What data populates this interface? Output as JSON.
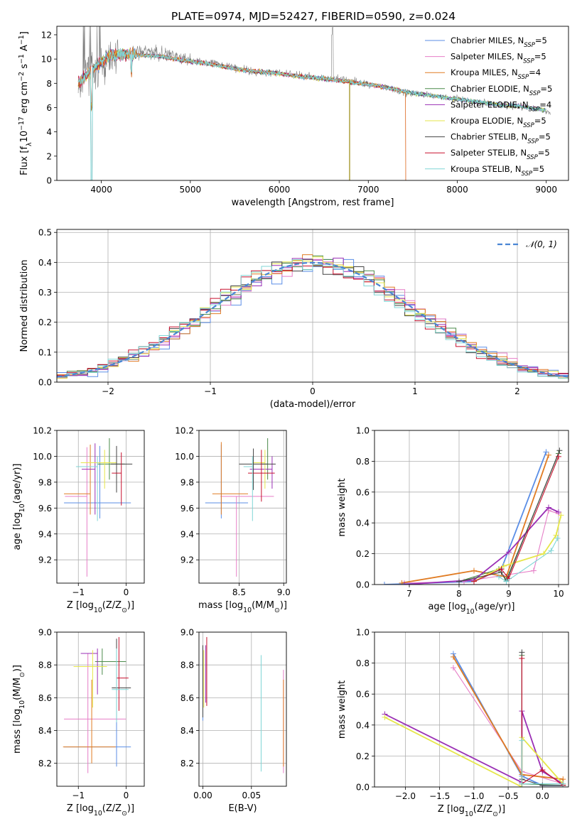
{
  "title": "PLATE=0974, MJD=52427, FIBERID=0590, z=0.024",
  "colors": [
    "#5b8ee6",
    "#e67ec7",
    "#e07b22",
    "#4a8a4a",
    "#9a2fb5",
    "#e6e64a",
    "#444444",
    "#c8102e",
    "#7fd6d6"
  ],
  "chart_data": [
    {
      "id": "spectrum",
      "type": "line",
      "xlabel": "wavelength [Angstrom, rest frame]",
      "ylabel": "Flux [f$_\\lambda$10$^{-17}$ erg cm$^{-2}$ s$^{-1}$ A$^{-1}$]",
      "xlim": [
        3500,
        9250
      ],
      "ylim": [
        0,
        12.7
      ],
      "xticks": [
        4000,
        5000,
        6000,
        7000,
        8000,
        9000
      ],
      "yticks": [
        0,
        2,
        4,
        6,
        8,
        10,
        12
      ],
      "legend_position": "top-right",
      "legend": [
        {
          "label": "Chabrier MILES, N",
          "sub": "SSP",
          "tail": "=5"
        },
        {
          "label": "Salpeter MILES, N",
          "sub": "SSP",
          "tail": "=5"
        },
        {
          "label": "Kroupa MILES, N",
          "sub": "SSP",
          "tail": "=4"
        },
        {
          "label": "Chabrier ELODIE, N",
          "sub": "SSP",
          "tail": "=5"
        },
        {
          "label": "Salpeter ELODIE, N",
          "sub": "SSP",
          "tail": "=4"
        },
        {
          "label": "Kroupa ELODIE, N",
          "sub": "SSP",
          "tail": "=5"
        },
        {
          "label": "Chabrier STELIB, N",
          "sub": "SSP",
          "tail": "=5"
        },
        {
          "label": "Salpeter STELIB, N",
          "sub": "SSP",
          "tail": "=5"
        },
        {
          "label": "Kroupa STELIB, N",
          "sub": "SSP",
          "tail": "=5"
        }
      ],
      "data_series": {
        "name": "data",
        "x": [
          3750,
          3850,
          3950,
          4100,
          4300,
          4500,
          4700,
          4900,
          5100,
          5300,
          5500,
          5700,
          5900,
          6100,
          6300,
          6500,
          6700,
          6900,
          7100,
          7300,
          7500,
          7700,
          7900,
          8100,
          8300,
          8500,
          8700,
          8900,
          9000
        ],
        "y": [
          7.5,
          9.5,
          8.5,
          10.2,
          10.5,
          10.6,
          10.4,
          10.0,
          9.8,
          9.6,
          9.3,
          9.0,
          8.9,
          8.8,
          8.6,
          8.4,
          8.3,
          8.1,
          7.8,
          7.4,
          7.2,
          7.0,
          6.8,
          6.6,
          6.4,
          6.2,
          6.1,
          5.9,
          5.7
        ]
      },
      "model_x": [
        3750,
        3900,
        4100,
        4300,
        4500,
        4700,
        4900,
        5100,
        5300,
        5500,
        5700,
        5900,
        6100,
        6300,
        6500,
        6700,
        6900,
        7100,
        7300,
        7500,
        7700,
        7900,
        8100,
        8300,
        8500,
        8700,
        8900,
        9000
      ],
      "model_y": [
        8.0,
        9.2,
        10.3,
        10.4,
        10.3,
        10.2,
        9.9,
        9.7,
        9.5,
        9.2,
        9.0,
        8.9,
        8.7,
        8.5,
        8.4,
        8.2,
        8.0,
        7.8,
        7.5,
        7.2,
        7.0,
        6.8,
        6.6,
        6.4,
        6.2,
        6.1,
        5.9,
        5.8
      ],
      "model_ends": [
        9000,
        9000,
        7420,
        9000,
        9000,
        9000,
        9000,
        7420,
        9000
      ],
      "orange_dropout_at": 6790
    },
    {
      "id": "residual-histogram",
      "type": "line",
      "xlabel": "(data-model)/error",
      "ylabel": "Normed distribution",
      "xlim": [
        -2.5,
        2.5
      ],
      "ylim": [
        0,
        0.51
      ],
      "xticks": [
        -2,
        -1,
        0,
        1,
        2
      ],
      "xtick_labels": [
        "−2",
        "−1",
        "0",
        "1",
        "2"
      ],
      "yticks": [
        0.0,
        0.1,
        0.2,
        0.3,
        0.4,
        0.5
      ],
      "grid": true,
      "legend_position": "top-right",
      "reference_curve": {
        "name": "N(0, 1)",
        "style": "dashed",
        "color": "#4a86d4"
      },
      "bin_width": 0.1,
      "bin_start": -2.5
    },
    {
      "id": "Z-vs-age",
      "type": "scatter",
      "xlabel": "Z [log$_{10}$(Z/Z$_\\odot$)]",
      "ylabel": "age  [log$_{10}$(age/yr)]",
      "xlim": [
        -1.45,
        0.38
      ],
      "ylim": [
        9.02,
        10.2
      ],
      "xticks": [
        -1,
        0
      ],
      "xtick_labels": [
        "−1",
        "0"
      ],
      "yticks": [
        9.2,
        9.4,
        9.6,
        9.8,
        10.0,
        10.2
      ],
      "grid": true,
      "points": [
        {
          "x": -0.55,
          "xerr": [
            0.75,
            0.65
          ],
          "y": 9.64,
          "yerr": [
            0.12,
            0.44
          ]
        },
        {
          "x": -0.82,
          "xerr": [
            0.46,
            0.0
          ],
          "y": 9.69,
          "yerr": [
            0.62,
            0.38
          ]
        },
        {
          "x": -0.75,
          "xerr": [
            0.55,
            0.0
          ],
          "y": 9.71,
          "yerr": [
            0.16,
            0.38
          ]
        },
        {
          "x": -0.35,
          "xerr": [
            0.25,
            0.32
          ],
          "y": 9.94,
          "yerr": [
            0.12,
            0.2
          ]
        },
        {
          "x": -0.65,
          "xerr": [
            0.28,
            0.0
          ],
          "y": 9.9,
          "yerr": [
            0.35,
            0.2
          ]
        },
        {
          "x": -0.45,
          "xerr": [
            0.5,
            0.25
          ],
          "y": 9.95,
          "yerr": [
            0.2,
            0.1
          ]
        },
        {
          "x": -0.2,
          "xerr": [
            0.12,
            0.33
          ],
          "y": 9.94,
          "yerr": [
            0.22,
            0.14
          ]
        },
        {
          "x": -0.1,
          "xerr": [
            0.2,
            0.0
          ],
          "y": 9.87,
          "yerr": [
            0.25,
            0.16
          ]
        },
        {
          "x": -0.6,
          "xerr": [
            0.45,
            0.0
          ],
          "y": 9.92,
          "yerr": [
            0.42,
            0.08
          ]
        }
      ]
    },
    {
      "id": "mass-vs-age",
      "type": "scatter",
      "xlabel": "mass [log$_{10}$(M/M$_\\odot$)]",
      "ylabel": "",
      "xlim": [
        8.05,
        9.03
      ],
      "ylim": [
        9.02,
        10.2
      ],
      "xticks": [
        8.5,
        9.0
      ],
      "xtick_labels": [
        "8.5",
        "9.0"
      ],
      "yticks": [
        9.2,
        9.4,
        9.6,
        9.8,
        10.0,
        10.2
      ],
      "grid": true,
      "points": [
        {
          "x": 8.3,
          "xerr": [
            0.18,
            0.3
          ],
          "y": 9.64,
          "yerr": [
            0.12,
            0.45
          ]
        },
        {
          "x": 8.47,
          "xerr": [
            0.18,
            0.42
          ],
          "y": 9.69,
          "yerr": [
            0.62,
            0.0
          ]
        },
        {
          "x": 8.3,
          "xerr": [
            0.1,
            0.3
          ],
          "y": 9.71,
          "yerr": [
            0.16,
            0.4
          ]
        },
        {
          "x": 8.82,
          "xerr": [
            0.08,
            0.0
          ],
          "y": 9.94,
          "yerr": [
            0.12,
            0.2
          ]
        },
        {
          "x": 8.87,
          "xerr": [
            0.25,
            0.0
          ],
          "y": 9.9,
          "yerr": [
            0.15,
            0.1
          ]
        },
        {
          "x": 8.79,
          "xerr": [
            0.14,
            0.0
          ],
          "y": 9.95,
          "yerr": [
            0.2,
            0.1
          ]
        },
        {
          "x": 8.66,
          "xerr": [
            0.16,
            0.25
          ],
          "y": 9.94,
          "yerr": [
            0.2,
            0.12
          ]
        },
        {
          "x": 8.75,
          "xerr": [
            0.15,
            0.15
          ],
          "y": 9.87,
          "yerr": [
            0.22,
            0.18
          ]
        },
        {
          "x": 8.65,
          "xerr": [
            0.1,
            0.0
          ],
          "y": 9.92,
          "yerr": [
            0.42,
            0.08
          ]
        }
      ]
    },
    {
      "id": "age-vs-massweight",
      "type": "line",
      "xlabel": "age  [log$_{10}$(age/yr)]",
      "ylabel": "mass weight",
      "xlim": [
        6.3,
        10.2
      ],
      "ylim": [
        0,
        1.0
      ],
      "xticks": [
        7,
        8,
        9,
        10
      ],
      "xtick_labels": [
        "7",
        "8",
        "9",
        "10"
      ],
      "yticks": [
        0.0,
        0.2,
        0.4,
        0.6,
        0.8,
        1.0
      ],
      "grid": true,
      "series": [
        {
          "x": [
            6.5,
            8.3,
            8.85,
            9.75
          ],
          "y": [
            0.0,
            0.02,
            0.1,
            0.86
          ]
        },
        {
          "x": [
            6.9,
            8.1,
            9.5,
            9.8,
            10.0
          ],
          "y": [
            0.01,
            0.02,
            0.09,
            0.48,
            0.46
          ]
        },
        {
          "x": [
            6.85,
            8.3,
            8.95,
            9.8
          ],
          "y": [
            0.01,
            0.09,
            0.05,
            0.84
          ]
        },
        {
          "x": [
            8.0,
            8.8,
            8.95,
            10.0
          ],
          "y": [
            0.02,
            0.1,
            0.03,
            0.85
          ]
        },
        {
          "x": [
            6.9,
            8.3,
            9.0,
            9.8,
            10.0
          ],
          "y": [
            0.0,
            0.03,
            0.21,
            0.5,
            0.47
          ]
        },
        {
          "x": [
            8.3,
            8.9,
            9.7,
            9.95,
            10.05
          ],
          "y": [
            0.02,
            0.12,
            0.2,
            0.32,
            0.45
          ]
        },
        {
          "x": [
            8.0,
            8.85,
            8.95,
            10.02
          ],
          "y": [
            0.02,
            0.08,
            0.02,
            0.87
          ]
        },
        {
          "x": [
            8.3,
            8.85,
            9.0,
            10.0
          ],
          "y": [
            0.02,
            0.1,
            0.04,
            0.83
          ]
        },
        {
          "x": [
            8.8,
            8.95,
            9.85,
            9.98
          ],
          "y": [
            0.05,
            0.02,
            0.22,
            0.3
          ]
        }
      ]
    },
    {
      "id": "Z-vs-mass",
      "type": "scatter",
      "xlabel": "Z [log$_{10}$(Z/Z$_\\odot$)]",
      "ylabel": "mass [log$_{10}$(M/M$_\\odot$)]",
      "xlim": [
        -1.45,
        0.38
      ],
      "ylim": [
        8.06,
        9.0
      ],
      "xticks": [
        -1,
        0
      ],
      "xtick_labels": [
        "−1",
        "0"
      ],
      "yticks": [
        8.2,
        8.4,
        8.6,
        8.8,
        9.0
      ],
      "grid": true,
      "points": [
        {
          "x": -0.2,
          "xerr": [
            1.1,
            0.3
          ],
          "y": 8.3,
          "yerr": [
            0.12,
            0.45
          ]
        },
        {
          "x": -0.8,
          "xerr": [
            0.5,
            0.8
          ],
          "y": 8.47,
          "yerr": [
            0.33,
            0.4
          ]
        },
        {
          "x": -0.72,
          "xerr": [
            0.6,
            0.5
          ],
          "y": 8.3,
          "yerr": [
            0.1,
            0.41
          ]
        },
        {
          "x": -0.5,
          "xerr": [
            0.15,
            0.5
          ],
          "y": 8.82,
          "yerr": [
            0.08,
            0.08
          ]
        },
        {
          "x": -0.6,
          "xerr": [
            0.35,
            0.0
          ],
          "y": 8.87,
          "yerr": [
            0.25,
            0.03
          ]
        },
        {
          "x": -0.7,
          "xerr": [
            0.4,
            0.3
          ],
          "y": 8.79,
          "yerr": [
            0.25,
            0.1
          ]
        },
        {
          "x": -0.2,
          "xerr": [
            0.1,
            0.3
          ],
          "y": 8.66,
          "yerr": [
            0.2,
            0.3
          ]
        },
        {
          "x": -0.15,
          "xerr": [
            0.05,
            0.2
          ],
          "y": 8.72,
          "yerr": [
            0.2,
            0.25
          ]
        },
        {
          "x": -0.2,
          "xerr": [
            0.1,
            0.25
          ],
          "y": 8.65,
          "yerr": [
            0.2,
            0.25
          ]
        }
      ]
    },
    {
      "id": "EBV-vs-mass",
      "type": "scatter",
      "xlabel": "E(B-V)",
      "ylabel": "",
      "xlim": [
        -0.004,
        0.086
      ],
      "ylim": [
        8.06,
        9.0
      ],
      "xticks": [
        0.0,
        0.05
      ],
      "xtick_labels": [
        "0.00",
        "0.05"
      ],
      "yticks": [
        8.2,
        8.4,
        8.6,
        8.8,
        9.0
      ],
      "grid": true,
      "points": [
        {
          "x": 0.0,
          "y": 8.66,
          "yerr": [
            0.2,
            0.25
          ]
        },
        {
          "x": 0.083,
          "y": 8.47,
          "yerr": [
            0.33,
            0.3
          ]
        },
        {
          "x": 0.083,
          "y": 8.3,
          "yerr": [
            0.12,
            0.41
          ]
        },
        {
          "x": 0.0,
          "y": 8.82,
          "yerr": [
            0.2,
            0.1
          ]
        },
        {
          "x": 0.003,
          "y": 8.87,
          "yerr": [
            0.3,
            0.05
          ]
        },
        {
          "x": 0.001,
          "y": 8.79,
          "yerr": [
            0.25,
            0.1
          ]
        },
        {
          "x": 0.0,
          "y": 8.72,
          "yerr": [
            0.24,
            0.2
          ]
        },
        {
          "x": 0.004,
          "y": 8.75,
          "yerr": [
            0.2,
            0.22
          ]
        },
        {
          "x": 0.06,
          "y": 8.5,
          "yerr": [
            0.35,
            0.36
          ]
        }
      ]
    },
    {
      "id": "Z-vs-massweight",
      "type": "line",
      "xlabel": "Z [log$_{10}$(Z/Z$_\\odot$)]",
      "ylabel": "mass weight",
      "xlim": [
        -2.45,
        0.38
      ],
      "ylim": [
        0,
        1.0
      ],
      "xticks": [
        -2.0,
        -1.5,
        -1.0,
        -0.5,
        0.0
      ],
      "xtick_labels": [
        "−2.0",
        "−1.5",
        "−1.0",
        "−0.5",
        "0.0"
      ],
      "yticks": [
        0.0,
        0.2,
        0.4,
        0.6,
        0.8,
        1.0
      ],
      "grid": true,
      "series": [
        {
          "x": [
            -1.3,
            -0.3,
            0.0,
            0.3
          ],
          "y": [
            0.86,
            0.07,
            0.01,
            0.01
          ]
        },
        {
          "x": [
            -1.3,
            -0.3,
            0.3
          ],
          "y": [
            0.77,
            0.1,
            0.02
          ]
        },
        {
          "x": [
            -1.3,
            -0.3,
            0.3,
            0.3
          ],
          "y": [
            0.84,
            0.08,
            0.05,
            0.01
          ]
        },
        {
          "x": [
            -0.3,
            -0.3,
            0.3
          ],
          "y": [
            0.85,
            0.02,
            0.01
          ]
        },
        {
          "x": [
            -2.3,
            -0.3,
            -0.3,
            0.0,
            0.3
          ],
          "y": [
            0.47,
            0.03,
            0.49,
            0.1,
            0.02
          ]
        },
        {
          "x": [
            -2.3,
            -0.3,
            -0.3,
            0.3
          ],
          "y": [
            0.45,
            0.0,
            0.32,
            0.02
          ]
        },
        {
          "x": [
            -0.3,
            -0.3,
            0.0,
            0.3
          ],
          "y": [
            0.87,
            0.05,
            0.01,
            0.01
          ]
        },
        {
          "x": [
            -0.3,
            -0.3,
            0.0,
            0.3
          ],
          "y": [
            0.83,
            0.02,
            0.11,
            0.01
          ]
        },
        {
          "x": [
            -0.3,
            -0.3,
            0.3
          ],
          "y": [
            0.3,
            0.02,
            0.02
          ]
        }
      ]
    }
  ]
}
